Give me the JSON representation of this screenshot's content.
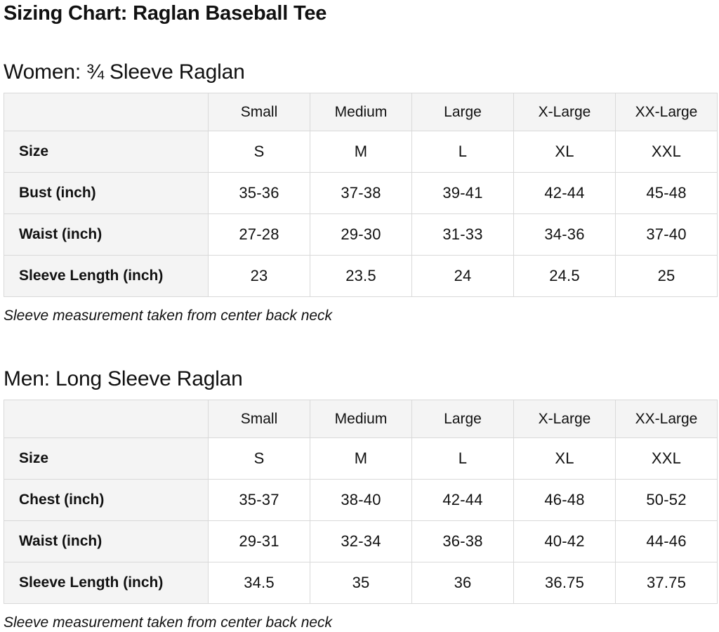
{
  "page": {
    "title": "Sizing Chart: Raglan Baseball Tee"
  },
  "colors": {
    "label_cell_background": "#f4f4f4",
    "data_cell_background": "#ffffff",
    "table_border": "#d9d9d9",
    "text": "#111111"
  },
  "sections": [
    {
      "heading": "Women: ¾ Sleeve Raglan",
      "columns": [
        "Small",
        "Medium",
        "Large",
        "X-Large",
        "XX-Large"
      ],
      "rows": [
        {
          "label": "Size",
          "values": [
            "S",
            "M",
            "L",
            "XL",
            "XXL"
          ]
        },
        {
          "label": "Bust (inch)",
          "values": [
            "35-36",
            "37-38",
            "39-41",
            "42-44",
            "45-48"
          ]
        },
        {
          "label": "Waist (inch)",
          "values": [
            "27-28",
            "29-30",
            "31-33",
            "34-36",
            "37-40"
          ]
        },
        {
          "label": "Sleeve Length (inch)",
          "values": [
            "23",
            "23.5",
            "24",
            "24.5",
            "25"
          ]
        }
      ],
      "footnote": "Sleeve measurement taken from center back neck"
    },
    {
      "heading": "Men: Long Sleeve Raglan",
      "columns": [
        "Small",
        "Medium",
        "Large",
        "X-Large",
        "XX-Large"
      ],
      "rows": [
        {
          "label": "Size",
          "values": [
            "S",
            "M",
            "L",
            "XL",
            "XXL"
          ]
        },
        {
          "label": "Chest (inch)",
          "values": [
            "35-37",
            "38-40",
            "42-44",
            "46-48",
            "50-52"
          ]
        },
        {
          "label": "Waist (inch)",
          "values": [
            "29-31",
            "32-34",
            "36-38",
            "40-42",
            "44-46"
          ]
        },
        {
          "label": "Sleeve Length (inch)",
          "values": [
            "34.5",
            "35",
            "36",
            "36.75",
            "37.75"
          ]
        }
      ],
      "footnote": "Sleeve measurement taken from center back neck"
    }
  ]
}
